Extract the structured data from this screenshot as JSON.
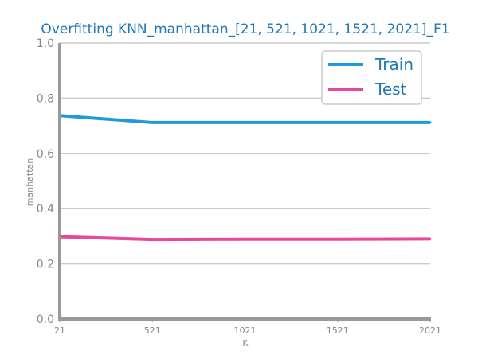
{
  "chart_data": {
    "type": "line",
    "title": "Overfitting KNN_manhattan_[21, 521, 1021, 1521, 2021]_F1",
    "xlabel": "K",
    "ylabel": "manhattan",
    "x": [
      21,
      521,
      1021,
      1521,
      2021
    ],
    "x_tick_labels": [
      "21",
      "521",
      "1021",
      "1521",
      "2021"
    ],
    "ylim": [
      0.0,
      1.0
    ],
    "y_ticks": [
      0.0,
      0.2,
      0.4,
      0.6,
      0.8,
      1.0
    ],
    "y_tick_labels": [
      "0.0",
      "0.2",
      "0.4",
      "0.6",
      "0.8",
      "1.0"
    ],
    "grid": true,
    "legend_position": "top-right",
    "series": [
      {
        "name": "Train",
        "color": "#1f9bdd",
        "values": [
          0.737,
          0.712,
          0.712,
          0.712,
          0.712
        ]
      },
      {
        "name": "Test",
        "color": "#e8489c",
        "values": [
          0.298,
          0.288,
          0.289,
          0.289,
          0.29
        ]
      }
    ]
  }
}
